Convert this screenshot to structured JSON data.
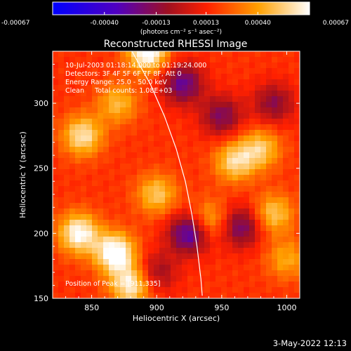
{
  "colorbar": {
    "tick_labels": [
      "-0.00067",
      "-0.00040",
      "-0.00013",
      "0.00013",
      "0.00040",
      "0.00067"
    ],
    "tick_values": [
      -0.00067,
      -0.0004,
      -0.00013,
      0.00013,
      0.0004,
      0.00067
    ],
    "range": [
      -0.00067,
      0.00067
    ],
    "units_text": "(photons cm⁻² s⁻¹ asec⁻²)",
    "colors": [
      "#0000ff",
      "#5000c0",
      "#a01020",
      "#ff2000",
      "#ffa000",
      "#ffffff"
    ]
  },
  "annotations": {
    "line1": "10-Jul-2003 01:18:14.000 to 01:19:24.000",
    "line2": "Detectors: 3F 4F 5F 6F 7F 8F, Att 0",
    "line3": "Energy Range: 25.0 - 50.0 keV",
    "line4": "Clean     Total counts: 1.08E+03",
    "peak": "Position of Peak = [911,335]"
  },
  "footer": {
    "date": "3-May-2022 12:13"
  },
  "chart_data": {
    "type": "heatmap",
    "title": "Reconstructed RHESSI Image",
    "xlabel": "Heliocentric X (arcsec)",
    "ylabel": "Heliocentric Y (arcsec)",
    "xlim": [
      820,
      1010
    ],
    "ylim": [
      150,
      340
    ],
    "xticks": [
      850,
      900,
      950,
      1000
    ],
    "yticks": [
      150,
      200,
      250,
      300
    ],
    "xtick_labels": [
      "850",
      "900",
      "950",
      "1000"
    ],
    "ytick_labels": [
      "150",
      "200",
      "250",
      "300"
    ],
    "limb_curve": [
      [
        881,
        340
      ],
      [
        895,
        315
      ],
      [
        906,
        290
      ],
      [
        915,
        265
      ],
      [
        922,
        240
      ],
      [
        927,
        215
      ],
      [
        931,
        190
      ],
      [
        934,
        165
      ],
      [
        935,
        152
      ]
    ],
    "hotspots": [
      {
        "x": 840,
        "y": 200,
        "value": 0.0006
      },
      {
        "x": 868,
        "y": 185,
        "value": 0.00067
      },
      {
        "x": 880,
        "y": 160,
        "value": 0.00055
      },
      {
        "x": 900,
        "y": 230,
        "value": 0.0004
      },
      {
        "x": 843,
        "y": 275,
        "value": 0.0005
      },
      {
        "x": 870,
        "y": 300,
        "value": 0.00035
      },
      {
        "x": 893,
        "y": 340,
        "value": 0.00067
      },
      {
        "x": 960,
        "y": 255,
        "value": 0.00045
      },
      {
        "x": 980,
        "y": 265,
        "value": 0.0004
      },
      {
        "x": 990,
        "y": 215,
        "value": 0.0004
      },
      {
        "x": 1000,
        "y": 180,
        "value": 0.0003
      },
      {
        "x": 940,
        "y": 210,
        "value": 0.00035
      }
    ],
    "coldspots": [
      {
        "x": 920,
        "y": 315,
        "value": -0.0005
      },
      {
        "x": 950,
        "y": 290,
        "value": -0.0004
      },
      {
        "x": 925,
        "y": 200,
        "value": -0.0006
      },
      {
        "x": 965,
        "y": 205,
        "value": -0.00045
      },
      {
        "x": 990,
        "y": 300,
        "value": -0.00035
      },
      {
        "x": 900,
        "y": 170,
        "value": -0.0003
      }
    ]
  }
}
